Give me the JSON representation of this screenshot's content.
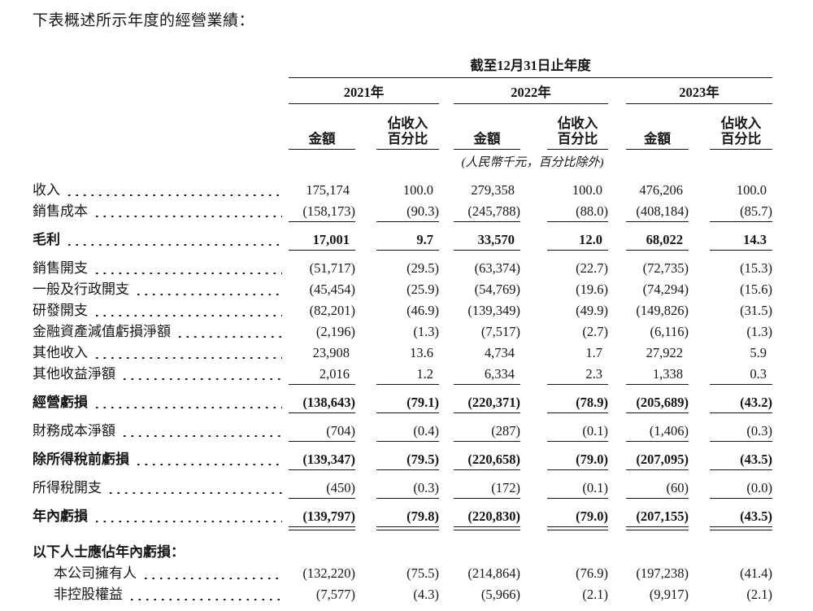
{
  "title": "下表概述所示年度的經營業績：",
  "table": {
    "period_header": "截至12月31日止年度",
    "years": [
      "2021年",
      "2022年",
      "2023年"
    ],
    "sub_headers": [
      "金額",
      "佔收入\n百分比"
    ],
    "unit_note": "(人民幣千元，百分比除外)",
    "rows": [
      {
        "label": "收入",
        "values": [
          "175,174",
          "100.0",
          "279,358",
          "100.0",
          "476,206",
          "100.0"
        ]
      },
      {
        "label": "銷售成本",
        "values": [
          "(158,173)",
          "(90.3)",
          "(245,788)",
          "(88.0)",
          "(408,184)",
          "(85.7)"
        ],
        "rule_below": true
      },
      {
        "label": "毛利",
        "bold": true,
        "values": [
          "17,001",
          "9.7",
          "33,570",
          "12.0",
          "68,022",
          "14.3"
        ],
        "rule_below": true
      },
      {
        "label": "銷售開支",
        "values": [
          "(51,717)",
          "(29.5)",
          "(63,374)",
          "(22.7)",
          "(72,735)",
          "(15.3)"
        ]
      },
      {
        "label": "一般及行政開支",
        "values": [
          "(45,454)",
          "(25.9)",
          "(54,769)",
          "(19.6)",
          "(74,294)",
          "(15.6)"
        ]
      },
      {
        "label": "研發開支",
        "values": [
          "(82,201)",
          "(46.9)",
          "(139,349)",
          "(49.9)",
          "(149,826)",
          "(31.5)"
        ]
      },
      {
        "label": "金融資產減值虧損淨額",
        "values": [
          "(2,196)",
          "(1.3)",
          "(7,517)",
          "(2.7)",
          "(6,116)",
          "(1.3)"
        ]
      },
      {
        "label": "其他收入",
        "values": [
          "23,908",
          "13.6",
          "4,734",
          "1.7",
          "27,922",
          "5.9"
        ]
      },
      {
        "label": "其他收益淨額",
        "values": [
          "2,016",
          "1.2",
          "6,334",
          "2.3",
          "1,338",
          "0.3"
        ],
        "rule_below": true
      },
      {
        "label": "經營虧損",
        "bold": true,
        "values": [
          "(138,643)",
          "(79.1)",
          "(220,371)",
          "(78.9)",
          "(205,689)",
          "(43.2)"
        ],
        "rule_below": true
      },
      {
        "label": "財務成本淨額",
        "values": [
          "(704)",
          "(0.4)",
          "(287)",
          "(0.1)",
          "(1,406)",
          "(0.3)"
        ],
        "rule_below": true
      },
      {
        "label": "除所得稅前虧損",
        "bold": true,
        "values": [
          "(139,347)",
          "(79.5)",
          "(220,658)",
          "(79.0)",
          "(207,095)",
          "(43.5)"
        ],
        "rule_below": true
      },
      {
        "label": "所得稅開支",
        "values": [
          "(450)",
          "(0.3)",
          "(172)",
          "(0.1)",
          "(60)",
          "(0.0)"
        ],
        "rule_below": true
      },
      {
        "label": "年內虧損",
        "bold": true,
        "values": [
          "(139,797)",
          "(79.8)",
          "(220,830)",
          "(79.0)",
          "(207,155)",
          "(43.5)"
        ],
        "double_rule_below": true
      },
      {
        "label": "以下人士應佔年內虧損：",
        "bold": true,
        "section_header": true,
        "values": []
      },
      {
        "label": "本公司擁有人",
        "indent": true,
        "values": [
          "(132,220)",
          "(75.5)",
          "(214,864)",
          "(76.9)",
          "(197,238)",
          "(41.4)"
        ]
      },
      {
        "label": "非控股權益",
        "indent": true,
        "values": [
          "(7,577)",
          "(4.3)",
          "(5,966)",
          "(2.1)",
          "(9,917)",
          "(2.1)"
        ]
      }
    ]
  }
}
